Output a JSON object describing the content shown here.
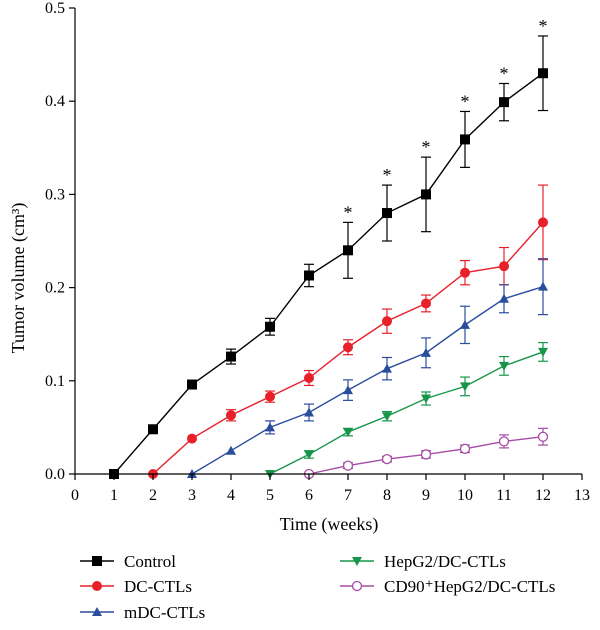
{
  "chart_data": {
    "type": "line",
    "xlabel": "Time (weeks)",
    "ylabel": "Tumor volume (cm³)",
    "xlim": [
      0,
      13
    ],
    "ylim": [
      0,
      0.5
    ],
    "xticks": [
      0,
      1,
      2,
      3,
      4,
      5,
      6,
      7,
      8,
      9,
      10,
      11,
      12,
      13
    ],
    "yticks": [
      "0.0",
      "0.1",
      "0.2",
      "0.3",
      "0.4",
      "0.5"
    ],
    "grid": false,
    "legend_position": "bottom",
    "significance_marker": "*",
    "significance_x": [
      7,
      8,
      9,
      10,
      11,
      12
    ],
    "series": [
      {
        "name": "Control",
        "color": "#000000",
        "marker": "square-filled",
        "x": [
          1,
          2,
          3,
          4,
          5,
          6,
          7,
          8,
          9,
          10,
          11,
          12
        ],
        "y": [
          0.0,
          0.048,
          0.096,
          0.126,
          0.158,
          0.213,
          0.24,
          0.28,
          0.3,
          0.359,
          0.399,
          0.43
        ],
        "err": [
          0,
          0.004,
          0.004,
          0.008,
          0.009,
          0.012,
          0.03,
          0.03,
          0.04,
          0.03,
          0.02,
          0.04
        ]
      },
      {
        "name": "DC-CTLs",
        "color": "#e8202a",
        "marker": "circle-filled",
        "x": [
          2,
          3,
          4,
          5,
          6,
          7,
          8,
          9,
          10,
          11,
          12
        ],
        "y": [
          0.0,
          0.038,
          0.063,
          0.083,
          0.103,
          0.136,
          0.164,
          0.183,
          0.216,
          0.223,
          0.27
        ],
        "err": [
          0,
          0,
          0.006,
          0.006,
          0.008,
          0.008,
          0.013,
          0.009,
          0.013,
          0.02,
          0.04
        ]
      },
      {
        "name": "mDC-CTLs",
        "color": "#2b4d9e",
        "marker": "triangle-up-filled",
        "x": [
          3,
          4,
          5,
          6,
          7,
          8,
          9,
          10,
          11,
          12
        ],
        "y": [
          0.0,
          0.025,
          0.05,
          0.066,
          0.09,
          0.113,
          0.13,
          0.16,
          0.188,
          0.201
        ],
        "err": [
          0,
          0,
          0.007,
          0.009,
          0.011,
          0.012,
          0.016,
          0.02,
          0.015,
          0.03
        ]
      },
      {
        "name": "HepG2/DC-CTLs",
        "color": "#17964a",
        "marker": "triangle-down-filled",
        "x": [
          5,
          6,
          7,
          8,
          9,
          10,
          11,
          12
        ],
        "y": [
          0.0,
          0.021,
          0.045,
          0.062,
          0.081,
          0.094,
          0.116,
          0.131
        ],
        "err": [
          0,
          0.004,
          0.004,
          0.005,
          0.007,
          0.01,
          0.01,
          0.01
        ]
      },
      {
        "name": "CD90⁺HepG2/DC-CTLs",
        "color": "#a64ca6",
        "marker": "circle-open",
        "x": [
          6,
          7,
          8,
          9,
          10,
          11,
          12
        ],
        "y": [
          0.0,
          0.009,
          0.016,
          0.021,
          0.027,
          0.035,
          0.04
        ],
        "err": [
          0,
          0.003,
          0.003,
          0.004,
          0.004,
          0.007,
          0.009
        ]
      }
    ]
  }
}
